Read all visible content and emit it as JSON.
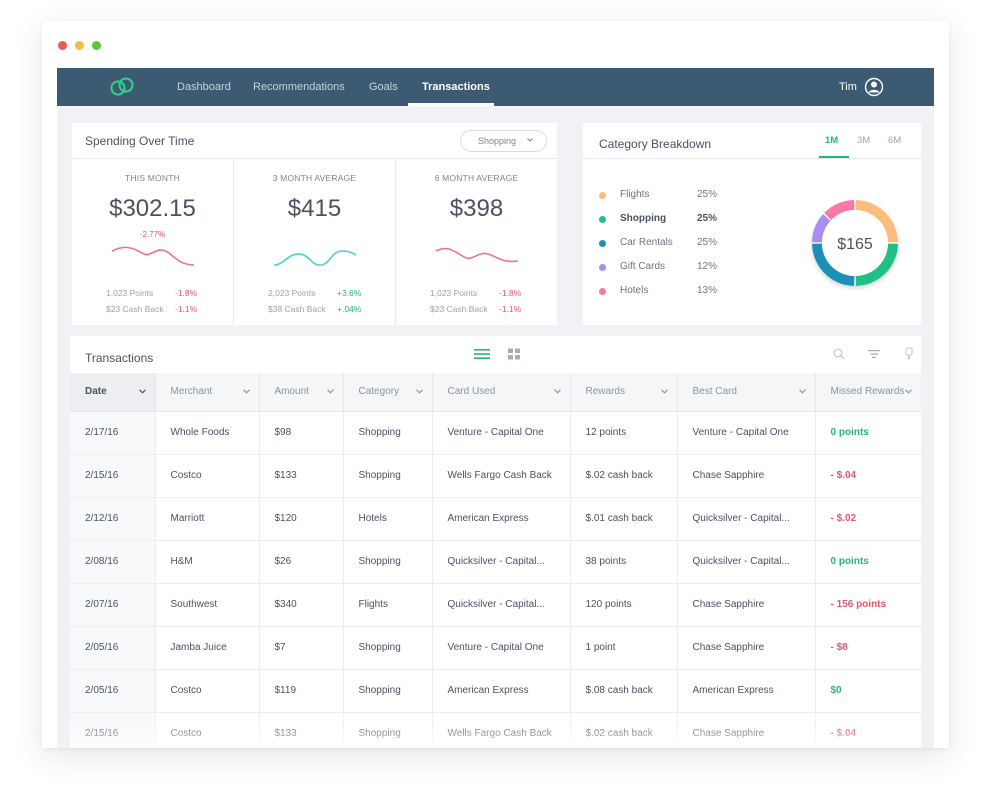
{
  "nav": {
    "items": [
      {
        "label": "Dashboard"
      },
      {
        "label": "Recommendations"
      },
      {
        "label": "Goals"
      },
      {
        "label": "Transactions"
      }
    ],
    "user_name": "Tim"
  },
  "spending": {
    "title": "Spending Over Time",
    "filter_value": "Shopping",
    "stats": [
      {
        "label": "This Month",
        "value": "$302.15",
        "change": "-2.77%",
        "rows": [
          {
            "label": "1,023 Points",
            "value": "-1.8%"
          },
          {
            "label": "$23 Cash Back",
            "value": "-1.1%"
          }
        ]
      },
      {
        "label": "3 Month Average",
        "value": "$415",
        "change": "",
        "rows": [
          {
            "label": "2,023 Points",
            "value": "+3.6%"
          },
          {
            "label": "$38 Cash Back",
            "value": "+.04%"
          }
        ]
      },
      {
        "label": "6 Month Average",
        "value": "$398",
        "change": "",
        "rows": [
          {
            "label": "1,023 Points",
            "value": "-1.8%"
          },
          {
            "label": "$23 Cash Back",
            "value": "-1.1%"
          }
        ]
      }
    ]
  },
  "category": {
    "title": "Category Breakdown",
    "periods": [
      "1M",
      "3M",
      "6M"
    ],
    "active_period": "1M",
    "total": "$165",
    "items": [
      {
        "label": "Flights",
        "pct": "25%",
        "value": 25,
        "color": "#f9bd7d"
      },
      {
        "label": "Shopping",
        "pct": "25%",
        "value": 25,
        "color": "#1fc086"
      },
      {
        "label": "Car Rentals",
        "pct": "25%",
        "value": 25,
        "color": "#1e90b8"
      },
      {
        "label": "Gift Cards",
        "pct": "12%",
        "value": 12,
        "color": "#a98df0"
      },
      {
        "label": "Hotels",
        "pct": "13%",
        "value": 13,
        "color": "#f77aa6"
      }
    ]
  },
  "transactions": {
    "title": "Transactions",
    "columns": [
      "Date",
      "Merchant",
      "Amount",
      "Category",
      "Card Used",
      "Rewards",
      "Best Card",
      "Missed Rewards"
    ],
    "rows": [
      [
        "2/17/16",
        "Whole Foods",
        "$98",
        "Shopping",
        "Venture - Capital One",
        "12 points",
        "Venture - Capital One",
        "0 points"
      ],
      [
        "2/15/16",
        "Costco",
        "$133",
        "Shopping",
        "Wells Fargo Cash Back",
        "$.02 cash back",
        "Chase Sapphire",
        "- $.04"
      ],
      [
        "2/12/16",
        "Marriott",
        "$120",
        "Hotels",
        "American Express",
        "$.01 cash back",
        "Quicksilver - Capital...",
        "- $.02"
      ],
      [
        "2/08/16",
        "H&M",
        "$26",
        "Shopping",
        "Quicksilver - Capital...",
        "38 points",
        "Quicksilver - Capital...",
        "0 points"
      ],
      [
        "2/07/16",
        "Southwest",
        "$340",
        "Flights",
        "Quicksilver - Capital...",
        "120 points",
        "Chase Sapphire",
        "- 156 points"
      ],
      [
        "2/05/16",
        "Jamba Juice",
        "$7",
        "Shopping",
        "Venture - Capital One",
        "1 point",
        "Chase Sapphire",
        "- $8"
      ],
      [
        "2/05/16",
        "Costco",
        "$119",
        "Shopping",
        "American Express",
        "$.08 cash back",
        "American Express",
        "$0"
      ],
      [
        "2/15/16",
        "Costco",
        "$133",
        "Shopping",
        "Wells Fargo Cash Back",
        "$.02 cash back",
        "Chase Sapphire",
        "- $.04"
      ]
    ]
  }
}
